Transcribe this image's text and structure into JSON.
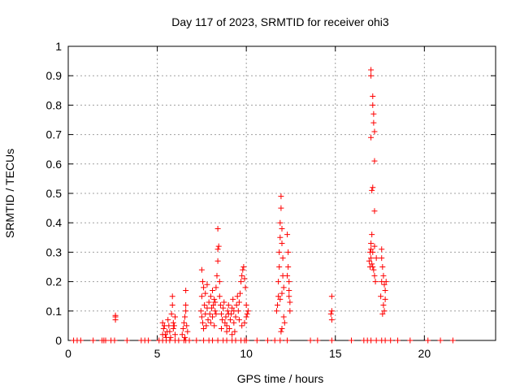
{
  "chart_data": {
    "type": "scatter",
    "title": "Day 117 of 2023, SRMTID for receiver ohi3",
    "xlabel": "GPS time / hours",
    "ylabel": "SRMTID / TECUs",
    "xlim": [
      0,
      24
    ],
    "ylim": [
      0,
      1
    ],
    "xticks": [
      0,
      5,
      10,
      15,
      20
    ],
    "yticks": [
      0,
      0.1,
      0.2,
      0.3,
      0.4,
      0.5,
      0.6,
      0.7,
      0.8,
      0.9,
      1
    ],
    "ytick_labels": [
      "0",
      "0.1",
      "0.2",
      "0.3",
      "0.4",
      "0.5",
      "0.6",
      "0.7",
      "0.8",
      "0.9",
      "1"
    ],
    "grid": true,
    "marker": "+",
    "color": "#ff0000",
    "series": [
      {
        "name": "SRMTID",
        "points": [
          [
            0.3,
            0
          ],
          [
            0.5,
            0
          ],
          [
            0.7,
            0
          ],
          [
            1.4,
            0
          ],
          [
            1.9,
            0
          ],
          [
            2.0,
            0
          ],
          [
            2.1,
            0
          ],
          [
            2.4,
            0
          ],
          [
            2.6,
            0
          ],
          [
            3.3,
            0
          ],
          [
            4.1,
            0
          ],
          [
            4.3,
            0
          ],
          [
            4.5,
            0
          ],
          [
            5.1,
            0
          ],
          [
            5.3,
            0
          ],
          [
            5.5,
            0
          ],
          [
            5.7,
            0
          ],
          [
            6.0,
            0
          ],
          [
            6.2,
            0
          ],
          [
            6.5,
            0
          ],
          [
            6.6,
            0
          ],
          [
            6.8,
            0
          ],
          [
            7.2,
            0
          ],
          [
            7.6,
            0
          ],
          [
            7.9,
            0
          ],
          [
            8.1,
            0
          ],
          [
            8.4,
            0
          ],
          [
            8.7,
            0
          ],
          [
            8.9,
            0
          ],
          [
            9.2,
            0
          ],
          [
            9.4,
            0
          ],
          [
            9.7,
            0
          ],
          [
            9.9,
            0
          ],
          [
            10.0,
            0
          ],
          [
            10.6,
            0
          ],
          [
            11.2,
            0
          ],
          [
            11.6,
            0
          ],
          [
            11.9,
            0
          ],
          [
            12.3,
            0
          ],
          [
            13.6,
            0
          ],
          [
            14.0,
            0
          ],
          [
            14.8,
            0
          ],
          [
            15.9,
            0
          ],
          [
            16.6,
            0
          ],
          [
            16.8,
            0
          ],
          [
            17.0,
            0
          ],
          [
            17.3,
            0
          ],
          [
            17.6,
            0
          ],
          [
            17.8,
            0
          ],
          [
            18.1,
            0
          ],
          [
            18.5,
            0
          ],
          [
            19.2,
            0
          ],
          [
            20.2,
            0
          ],
          [
            20.9,
            0
          ],
          [
            21.6,
            0
          ],
          [
            2.65,
            0.07
          ],
          [
            2.65,
            0.08
          ],
          [
            2.65,
            0.085
          ],
          [
            5.3,
            0.06
          ],
          [
            5.35,
            0.04
          ],
          [
            5.4,
            0.05
          ],
          [
            5.45,
            0.02
          ],
          [
            5.5,
            0.01
          ],
          [
            5.55,
            0.03
          ],
          [
            5.3,
            0.02
          ],
          [
            5.6,
            0.07
          ],
          [
            5.65,
            0.05
          ],
          [
            5.7,
            0.03
          ],
          [
            5.75,
            0.01
          ],
          [
            5.8,
            0.09
          ],
          [
            5.85,
            0.12
          ],
          [
            5.85,
            0.15
          ],
          [
            5.9,
            0.06
          ],
          [
            5.9,
            0.04
          ],
          [
            6.0,
            0.08
          ],
          [
            6.0,
            0.02
          ],
          [
            5.95,
            0.05
          ],
          [
            6.4,
            0.02
          ],
          [
            6.45,
            0.04
          ],
          [
            6.5,
            0.06
          ],
          [
            6.55,
            0.08
          ],
          [
            6.6,
            0.1
          ],
          [
            6.6,
            0.12
          ],
          [
            6.65,
            0.05
          ],
          [
            6.7,
            0.03
          ],
          [
            6.6,
            0.17
          ],
          [
            6.55,
            0.01
          ],
          [
            7.5,
            0.24
          ],
          [
            7.55,
            0.2
          ],
          [
            7.6,
            0.18
          ],
          [
            7.5,
            0.15
          ],
          [
            7.45,
            0.1
          ],
          [
            7.5,
            0.08
          ],
          [
            7.55,
            0.06
          ],
          [
            7.6,
            0.04
          ],
          [
            7.65,
            0.12
          ],
          [
            7.7,
            0.09
          ],
          [
            7.75,
            0.05
          ],
          [
            7.8,
            0.11
          ],
          [
            7.85,
            0.07
          ],
          [
            7.9,
            0.13
          ],
          [
            7.95,
            0.09
          ],
          [
            8.0,
            0.15
          ],
          [
            8.05,
            0.11
          ],
          [
            8.1,
            0.08
          ],
          [
            8.0,
            0.06
          ],
          [
            8.15,
            0.12
          ],
          [
            8.2,
            0.14
          ],
          [
            8.25,
            0.1
          ],
          [
            8.3,
            0.18
          ],
          [
            8.35,
            0.22
          ],
          [
            8.4,
            0.27
          ],
          [
            8.4,
            0.31
          ],
          [
            8.45,
            0.32
          ],
          [
            8.5,
            0.2
          ],
          [
            8.4,
            0.38
          ],
          [
            8.5,
            0.15
          ],
          [
            8.55,
            0.12
          ],
          [
            8.6,
            0.09
          ],
          [
            8.65,
            0.07
          ],
          [
            8.7,
            0.11
          ],
          [
            8.75,
            0.13
          ],
          [
            8.8,
            0.06
          ],
          [
            8.85,
            0.08
          ],
          [
            8.9,
            0.05
          ],
          [
            8.95,
            0.1
          ],
          [
            9.0,
            0.12
          ],
          [
            9.05,
            0.04
          ],
          [
            9.1,
            0.07
          ],
          [
            9.15,
            0.09
          ],
          [
            9.2,
            0.11
          ],
          [
            9.25,
            0.14
          ],
          [
            9.3,
            0.06
          ],
          [
            9.35,
            0.03
          ],
          [
            9.4,
            0.08
          ],
          [
            9.45,
            0.12
          ],
          [
            9.5,
            0.15
          ],
          [
            9.55,
            0.1
          ],
          [
            9.6,
            0.13
          ],
          [
            9.65,
            0.16
          ],
          [
            9.7,
            0.2
          ],
          [
            9.75,
            0.22
          ],
          [
            9.8,
            0.24
          ],
          [
            9.85,
            0.25
          ],
          [
            9.9,
            0.21
          ],
          [
            9.95,
            0.18
          ],
          [
            10.0,
            0.12
          ],
          [
            10.05,
            0.09
          ],
          [
            10.1,
            0.1
          ],
          [
            10.0,
            0.08
          ],
          [
            9.9,
            0.06
          ],
          [
            8.2,
            0.05
          ],
          [
            8.3,
            0.09
          ],
          [
            8.6,
            0.04
          ],
          [
            8.9,
            0.03
          ],
          [
            9.2,
            0.02
          ],
          [
            7.7,
            0.16
          ],
          [
            7.8,
            0.19
          ],
          [
            8.1,
            0.17
          ],
          [
            8.25,
            0.13
          ],
          [
            9.0,
            0.09
          ],
          [
            9.3,
            0.1
          ],
          [
            9.6,
            0.07
          ],
          [
            9.75,
            0.05
          ],
          [
            11.7,
            0.1
          ],
          [
            11.75,
            0.12
          ],
          [
            11.8,
            0.15
          ],
          [
            11.8,
            0.2
          ],
          [
            11.85,
            0.25
          ],
          [
            11.85,
            0.3
          ],
          [
            11.9,
            0.35
          ],
          [
            11.9,
            0.4
          ],
          [
            11.95,
            0.45
          ],
          [
            11.95,
            0.49
          ],
          [
            12.0,
            0.38
          ],
          [
            12.0,
            0.33
          ],
          [
            12.05,
            0.28
          ],
          [
            12.05,
            0.22
          ],
          [
            12.1,
            0.18
          ],
          [
            12.1,
            0.08
          ],
          [
            12.15,
            0.06
          ],
          [
            11.95,
            0.03
          ],
          [
            12.0,
            0.04
          ],
          [
            11.9,
            0.14
          ],
          [
            12.0,
            0.16
          ],
          [
            12.3,
            0.36
          ],
          [
            12.35,
            0.3
          ],
          [
            12.35,
            0.25
          ],
          [
            12.4,
            0.2
          ],
          [
            12.4,
            0.17
          ],
          [
            12.45,
            0.13
          ],
          [
            12.45,
            0.1
          ],
          [
            12.4,
            0.15
          ],
          [
            12.3,
            0.22
          ],
          [
            14.8,
            0.15
          ],
          [
            14.8,
            0.1
          ],
          [
            14.8,
            0.07
          ],
          [
            14.75,
            0.09
          ],
          [
            17.0,
            0.92
          ],
          [
            17.0,
            0.9
          ],
          [
            17.1,
            0.83
          ],
          [
            17.1,
            0.8
          ],
          [
            17.15,
            0.77
          ],
          [
            17.15,
            0.74
          ],
          [
            17.2,
            0.71
          ],
          [
            17.0,
            0.69
          ],
          [
            17.2,
            0.61
          ],
          [
            17.1,
            0.52
          ],
          [
            17.2,
            0.44
          ],
          [
            17.05,
            0.51
          ],
          [
            17.05,
            0.36
          ],
          [
            17.0,
            0.33
          ],
          [
            16.95,
            0.3
          ],
          [
            17.0,
            0.28
          ],
          [
            17.05,
            0.26
          ],
          [
            17.1,
            0.25
          ],
          [
            17.15,
            0.24
          ],
          [
            17.2,
            0.22
          ],
          [
            17.25,
            0.2
          ],
          [
            16.9,
            0.27
          ],
          [
            16.95,
            0.25
          ],
          [
            17.0,
            0.31
          ],
          [
            17.1,
            0.3
          ],
          [
            17.2,
            0.32
          ],
          [
            17.3,
            0.28
          ],
          [
            17.6,
            0.31
          ],
          [
            17.6,
            0.28
          ],
          [
            17.65,
            0.25
          ],
          [
            17.7,
            0.22
          ],
          [
            17.75,
            0.19
          ],
          [
            17.8,
            0.17
          ],
          [
            17.8,
            0.14
          ],
          [
            17.7,
            0.12
          ],
          [
            17.75,
            0.1
          ],
          [
            17.65,
            0.09
          ],
          [
            17.6,
            0.2
          ],
          [
            17.55,
            0.15
          ],
          [
            17.85,
            0.2
          ]
        ]
      }
    ]
  }
}
